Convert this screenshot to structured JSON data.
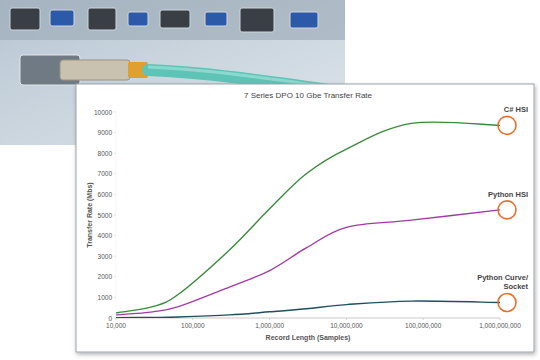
{
  "chart_data": {
    "type": "line",
    "title": "7 Series DPO 10 Gbe Transfer Rate",
    "x_label": "Record Length (Samples)",
    "y_label": "Transfer Rate (Mbs)",
    "log": "x",
    "grid": false,
    "x": [
      10000,
      30000,
      65000,
      300000,
      1000000,
      3000000,
      10000000,
      70000000,
      1000000000
    ],
    "xlim": [
      10000,
      1000000000
    ],
    "xticks": [
      {
        "value": 10000,
        "label": "10,000"
      },
      {
        "value": 100000,
        "label": "100,000"
      },
      {
        "value": 1000000,
        "label": "1,000,000"
      },
      {
        "value": 10000000,
        "label": "10,000,000"
      },
      {
        "value": 100000000,
        "label": "100,000,000"
      },
      {
        "value": 1000000000,
        "label": "1,000,000,000"
      }
    ],
    "ylim": [
      0,
      10000
    ],
    "yticks": [
      0,
      1000,
      2000,
      3000,
      4000,
      5000,
      6000,
      7000,
      8000,
      9000,
      10000
    ],
    "series": [
      {
        "name": "C# HSI",
        "color": "#3b8a3b",
        "values": [
          250,
          550,
          1150,
          3300,
          5300,
          7000,
          8200,
          9450,
          9350
        ]
      },
      {
        "name": "Python HSI",
        "color": "#a23aa6",
        "values": [
          150,
          300,
          550,
          1500,
          2300,
          3400,
          4400,
          4750,
          5250
        ]
      },
      {
        "name": "Python Curve/ Socket",
        "color": "#1f4e5f",
        "values": [
          20,
          30,
          50,
          150,
          300,
          450,
          650,
          820,
          750
        ]
      }
    ]
  }
}
